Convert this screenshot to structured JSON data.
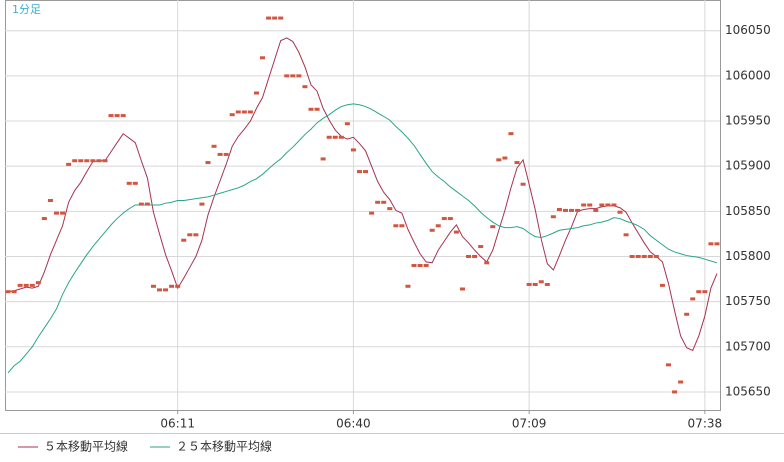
{
  "chart_data": {
    "type": "line",
    "title": "1分足",
    "categories": [
      null,
      null,
      null,
      null,
      null,
      null,
      null,
      null,
      null,
      null,
      null,
      null,
      null,
      null,
      null,
      null,
      null,
      null,
      null,
      null,
      null,
      null,
      null,
      null,
      null,
      null,
      null,
      null,
      "06:11",
      null,
      null,
      null,
      null,
      null,
      null,
      null,
      null,
      null,
      null,
      null,
      null,
      null,
      null,
      null,
      null,
      null,
      null,
      null,
      null,
      null,
      null,
      null,
      null,
      null,
      null,
      null,
      null,
      "06:40",
      null,
      null,
      null,
      null,
      null,
      null,
      null,
      null,
      null,
      null,
      null,
      null,
      null,
      null,
      null,
      null,
      null,
      null,
      null,
      null,
      null,
      null,
      null,
      null,
      null,
      null,
      null,
      null,
      "07:09",
      null,
      null,
      null,
      null,
      null,
      null,
      null,
      null,
      null,
      null,
      null,
      null,
      null,
      null,
      null,
      null,
      null,
      null,
      null,
      null,
      null,
      null,
      null,
      null,
      null,
      null,
      null,
      null,
      "07:38",
      null,
      null
    ],
    "values": [
      105761,
      105761,
      105768,
      105768,
      105768,
      105771,
      105842,
      105862,
      105848,
      105848,
      105902,
      105906,
      105906,
      105906,
      105906,
      105906,
      105906,
      105956,
      105956,
      105956,
      105881,
      105881,
      105858,
      105858,
      105767,
      105763,
      105763,
      105767,
      105767,
      105818,
      105824,
      105824,
      105858,
      105904,
      105922,
      105913,
      105913,
      105957,
      105960,
      105960,
      105960,
      105981,
      106020,
      106064,
      106064,
      106064,
      106000,
      106000,
      106000,
      105988,
      105963,
      105963,
      105908,
      105932,
      105932,
      105932,
      105947,
      105918,
      105894,
      105894,
      105848,
      105860,
      105860,
      105853,
      105834,
      105834,
      105767,
      105790,
      105790,
      105790,
      105829,
      105834,
      105842,
      105842,
      105827,
      105764,
      105800,
      105800,
      105811,
      105793,
      105833,
      105907,
      105909,
      105936,
      105904,
      105880,
      105769,
      105769,
      105772,
      105769,
      105844,
      105852,
      105851,
      105851,
      105851,
      105857,
      105857,
      105851,
      105857,
      105857,
      105857,
      105849,
      105824,
      105800,
      105800,
      105800,
      105800,
      105800,
      105768,
      105680,
      105650,
      105661,
      105736,
      105753,
      105761,
      105761,
      105814,
      105814
    ],
    "color": "#d2553f",
    "series": [
      {
        "name": "５本移動平均線",
        "color": "#a8324f",
        "values": [
          105761,
          105762,
          105764,
          105766,
          105765,
          105767,
          105783,
          105802,
          105818,
          105834,
          105860,
          105873,
          105882,
          105894,
          105905,
          105906,
          105906,
          105916,
          105926,
          105936,
          105931,
          105926,
          105906,
          105887,
          105849,
          105825,
          105802,
          105784,
          105765,
          105776,
          105788,
          105800,
          105818,
          105846,
          105866,
          105884,
          105902,
          105922,
          105933,
          105941,
          105950,
          105964,
          105976,
          105997,
          106018,
          106039,
          106042,
          106038,
          106026,
          106010,
          105990,
          105983,
          105964,
          105951,
          105940,
          105933,
          105930,
          105932,
          105925,
          105917,
          105900,
          105883,
          105871,
          105863,
          105851,
          105848,
          105830,
          105816,
          105803,
          105794,
          105793,
          105807,
          105817,
          105827,
          105835,
          105822,
          105815,
          105807,
          105800,
          105794,
          105807,
          105829,
          105851,
          105876,
          105898,
          105907,
          105880,
          105852,
          105819,
          105792,
          105785,
          105801,
          105818,
          105833,
          105850,
          105852,
          105853,
          105853,
          105855,
          105856,
          105856,
          105854,
          105849,
          105837,
          105826,
          105815,
          105805,
          105800,
          105794,
          105770,
          105740,
          105712,
          105699,
          105696,
          105712,
          105734,
          105765,
          105781
        ]
      },
      {
        "name": "２５本移動平均線",
        "color": "#2aa58a",
        "values": [
          105671,
          105679,
          105684,
          105692,
          105700,
          105711,
          105721,
          105731,
          105742,
          105758,
          105771,
          105782,
          105792,
          105802,
          105811,
          105819,
          105827,
          105835,
          105842,
          105848,
          105853,
          105857,
          105857,
          105857,
          105857,
          105857,
          105859,
          105860,
          105862,
          105862,
          105863,
          105864,
          105865,
          105866,
          105868,
          105870,
          105872,
          105874,
          105876,
          105879,
          105883,
          105886,
          105891,
          105897,
          105903,
          105908,
          105915,
          105921,
          105928,
          105935,
          105941,
          105948,
          105953,
          105957,
          105962,
          105966,
          105968,
          105969,
          105968,
          105966,
          105963,
          105959,
          105955,
          105951,
          105944,
          105938,
          105931,
          105923,
          105913,
          105903,
          105894,
          105888,
          105883,
          105877,
          105872,
          105867,
          105862,
          105856,
          105849,
          105843,
          105838,
          105834,
          105832,
          105832,
          105833,
          105831,
          105826,
          105822,
          105821,
          105823,
          105826,
          105829,
          105830,
          105831,
          105832,
          105834,
          105835,
          105837,
          105838,
          105840,
          105843,
          105842,
          105839,
          105837,
          105834,
          105830,
          105823,
          105818,
          105813,
          105808,
          105805,
          105803,
          105801,
          105800,
          105799,
          105797,
          105795,
          105793
        ]
      }
    ],
    "ylim": [
      105630,
      106084
    ],
    "yticks": [
      105650,
      105700,
      105750,
      105800,
      105850,
      105900,
      105950,
      106000,
      106050
    ],
    "grid": true
  }
}
